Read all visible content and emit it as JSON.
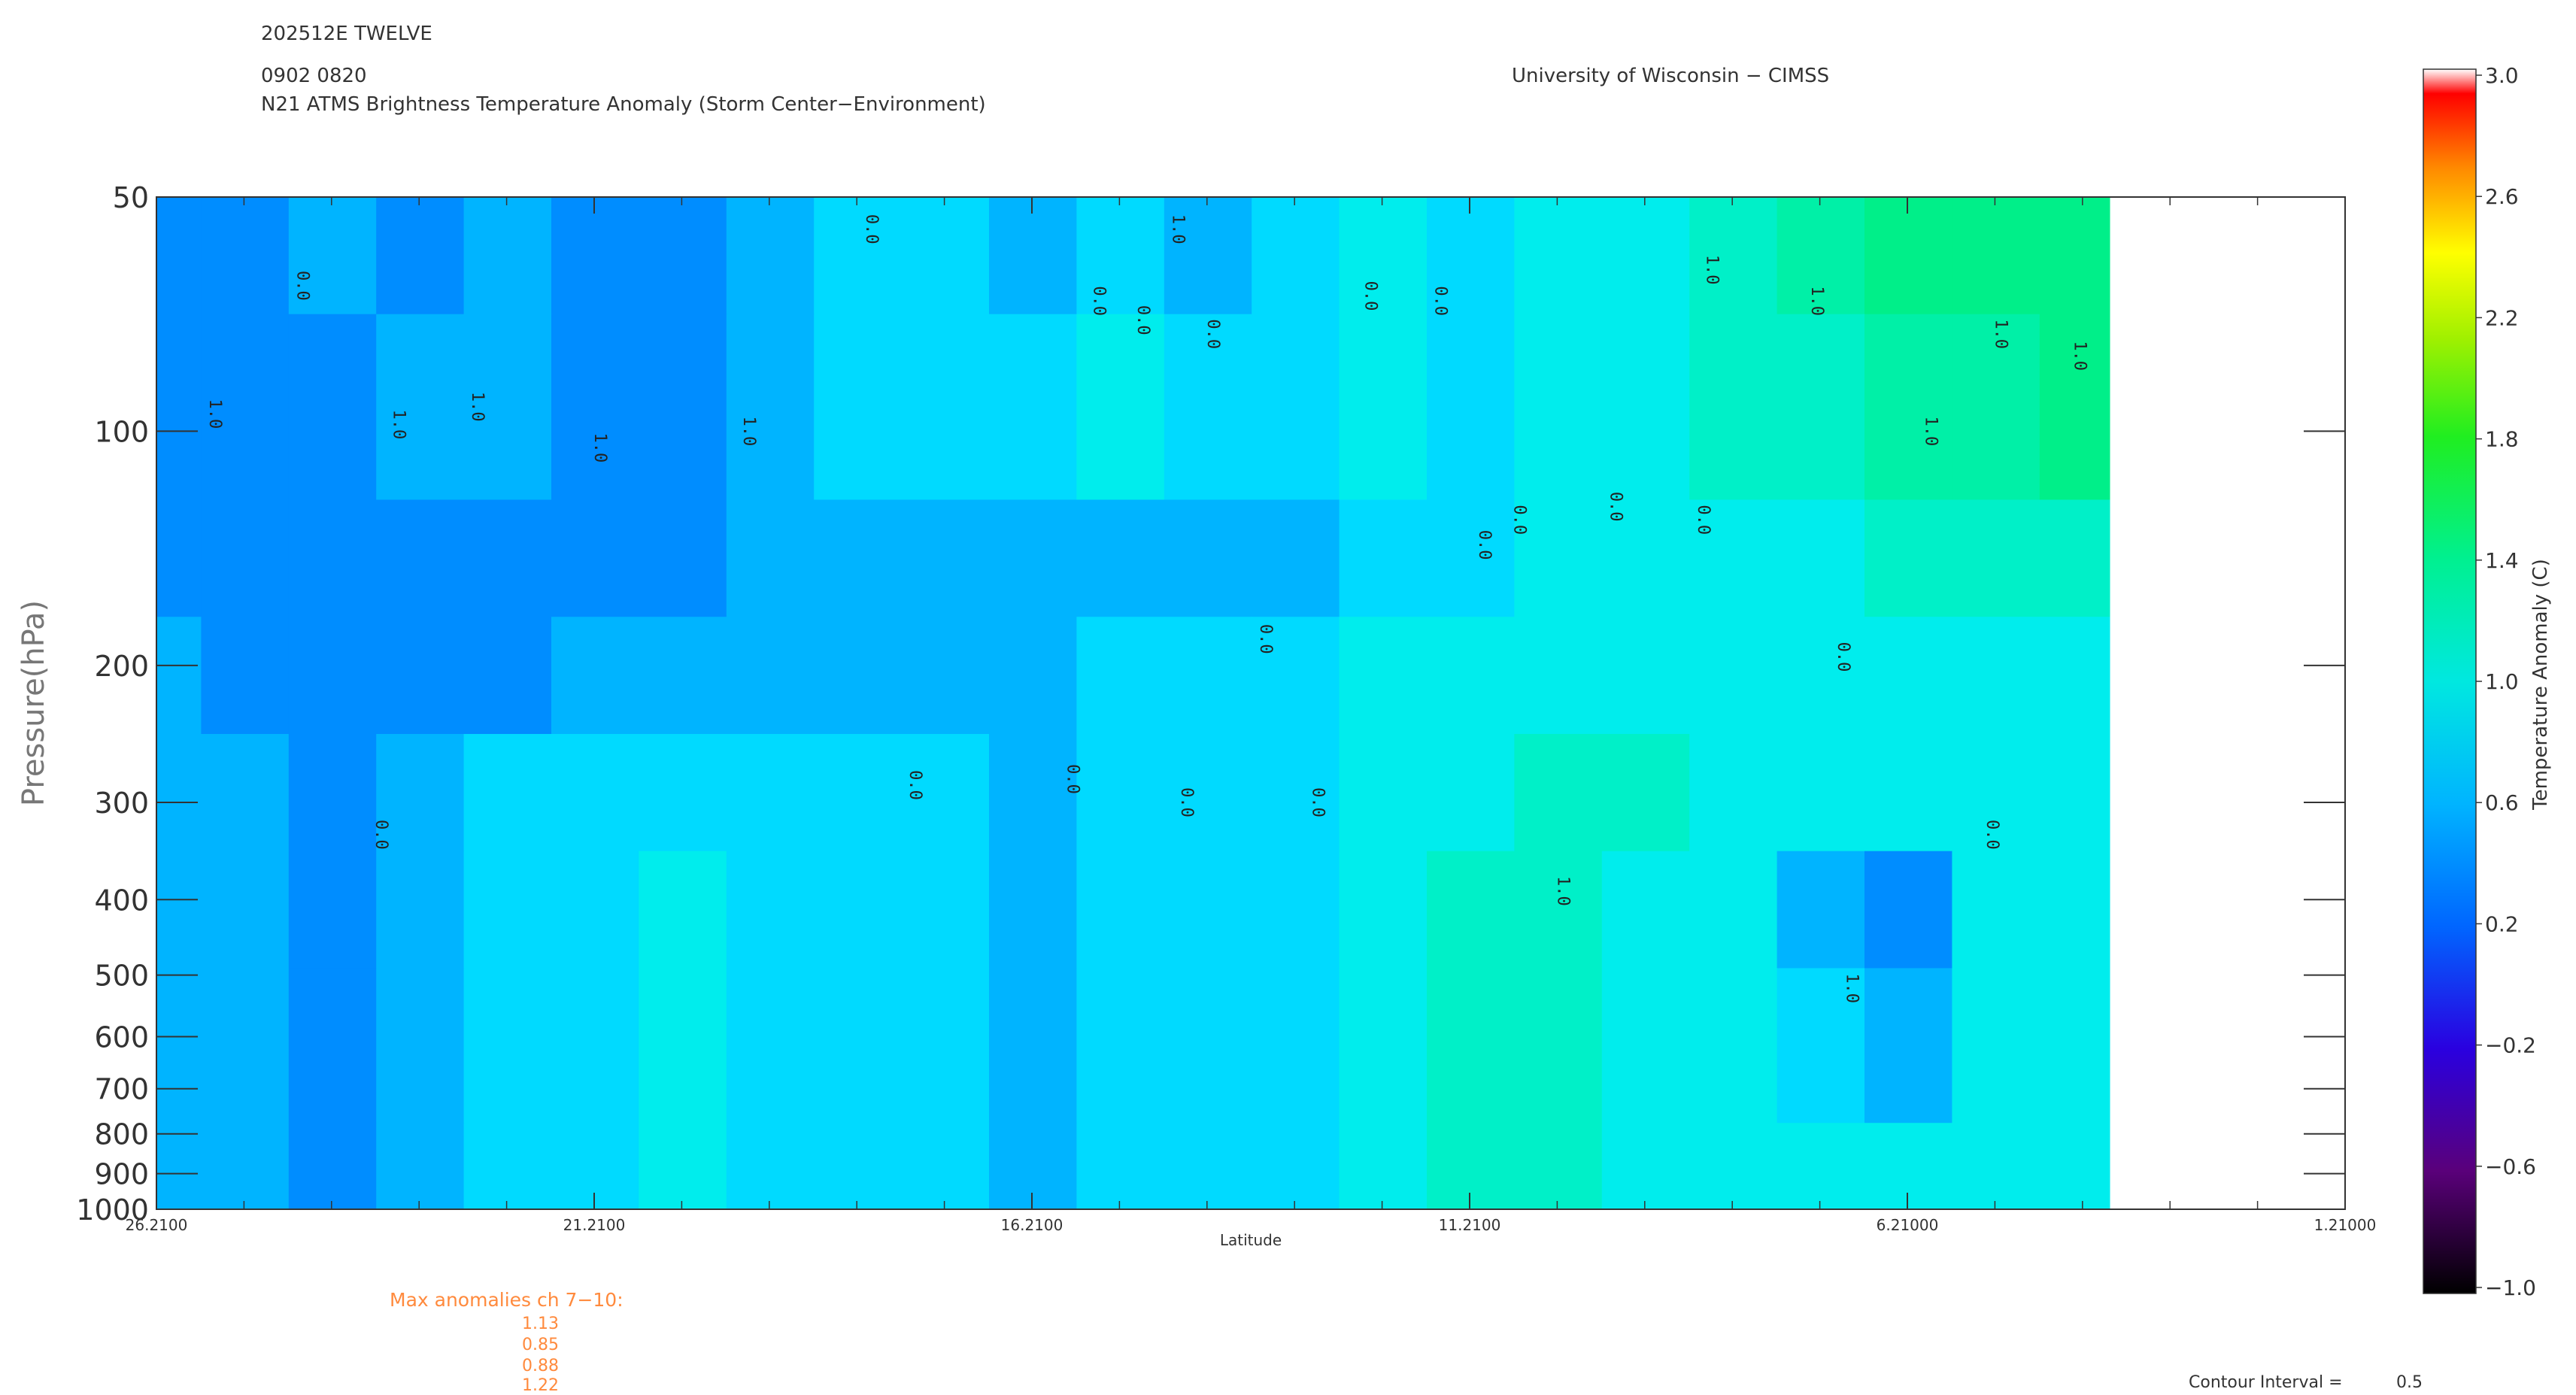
{
  "header": {
    "storm_id": "202512E TWELVE",
    "datetime": "0902 0820",
    "product": "N21 ATMS Brightness Temperature Anomaly (Storm Center−Environment)",
    "institution": "University of Wisconsin − CIMSS"
  },
  "chart_data": {
    "type": "heatmap",
    "xlabel": "Latitude",
    "ylabel": "Pressure(hPa)",
    "x_ticks": [
      "26.2100",
      "21.2100",
      "16.2100",
      "11.2100",
      "6.21000",
      "1.21000"
    ],
    "x_tick_values": [
      26.21,
      21.21,
      16.21,
      11.21,
      6.21,
      1.21
    ],
    "xlim": [
      26.21,
      1.21
    ],
    "y_ticks": [
      "50",
      "100",
      "200",
      "300",
      "400",
      "500",
      "600",
      "700",
      "800",
      "900",
      "1000"
    ],
    "y_tick_values": [
      50,
      100,
      200,
      300,
      400,
      500,
      600,
      700,
      800,
      900,
      1000
    ],
    "ylim": [
      1000,
      50
    ],
    "y_scale": "log",
    "data_extent_lat": [
      26.21,
      3.9
    ],
    "colorbar": {
      "label": "Temperature Anomaly (C)",
      "ticks": [
        "3.0",
        "2.6",
        "2.2",
        "1.8",
        "1.4",
        "1.0",
        "0.6",
        "0.2",
        "−0.2",
        "−0.6",
        "−1.0"
      ],
      "range": [
        -1.0,
        3.0
      ]
    },
    "field_levels": {
      "latitudes": [
        26.2,
        25.2,
        24.2,
        23.2,
        22.2,
        21.2,
        20.2,
        19.2,
        18.2,
        17.2,
        16.2,
        15.2,
        14.2,
        13.2,
        12.2,
        11.2,
        10.2,
        9.2,
        8.2,
        7.2,
        6.2,
        5.2,
        4.2
      ],
      "rows": [
        {
          "p": 50,
          "values": [
            0.3,
            0.3,
            0.4,
            0.3,
            0.4,
            0.3,
            0.3,
            0.4,
            0.5,
            0.5,
            0.4,
            0.5,
            0.4,
            0.5,
            0.6,
            0.5,
            0.6,
            0.6,
            0.7,
            0.8,
            0.9,
            0.9,
            0.9
          ]
        },
        {
          "p": 100,
          "values": [
            0.3,
            0.3,
            0.3,
            0.4,
            0.4,
            0.3,
            0.3,
            0.4,
            0.5,
            0.5,
            0.5,
            0.6,
            0.5,
            0.5,
            0.6,
            0.5,
            0.6,
            0.6,
            0.7,
            0.7,
            0.8,
            0.8,
            0.9
          ]
        },
        {
          "p": 150,
          "values": [
            0.3,
            0.3,
            0.3,
            0.3,
            0.3,
            0.3,
            0.3,
            0.4,
            0.4,
            0.4,
            0.4,
            0.4,
            0.4,
            0.4,
            0.5,
            0.5,
            0.6,
            0.6,
            0.6,
            0.6,
            0.7,
            0.7,
            0.7
          ]
        },
        {
          "p": 200,
          "values": [
            0.4,
            0.3,
            0.3,
            0.3,
            0.3,
            0.4,
            0.4,
            0.4,
            0.4,
            0.4,
            0.4,
            0.5,
            0.5,
            0.5,
            0.6,
            0.6,
            0.6,
            0.6,
            0.6,
            0.6,
            0.6,
            0.6,
            0.6
          ]
        },
        {
          "p": 300,
          "values": [
            0.4,
            0.4,
            0.3,
            0.4,
            0.5,
            0.5,
            0.5,
            0.5,
            0.5,
            0.5,
            0.4,
            0.5,
            0.5,
            0.5,
            0.6,
            0.6,
            0.7,
            0.7,
            0.6,
            0.6,
            0.6,
            0.6,
            0.6
          ]
        },
        {
          "p": 400,
          "values": [
            0.4,
            0.4,
            0.3,
            0.4,
            0.5,
            0.5,
            0.6,
            0.5,
            0.5,
            0.5,
            0.4,
            0.5,
            0.5,
            0.5,
            0.6,
            0.7,
            0.7,
            0.6,
            0.6,
            0.4,
            0.3,
            0.6,
            0.6
          ]
        },
        {
          "p": 600,
          "values": [
            0.4,
            0.4,
            0.3,
            0.4,
            0.5,
            0.5,
            0.6,
            0.5,
            0.5,
            0.5,
            0.4,
            0.5,
            0.5,
            0.5,
            0.6,
            0.7,
            0.7,
            0.6,
            0.6,
            0.5,
            0.4,
            0.6,
            0.6
          ]
        },
        {
          "p": 1000,
          "values": [
            0.4,
            0.4,
            0.3,
            0.4,
            0.5,
            0.5,
            0.6,
            0.5,
            0.5,
            0.5,
            0.4,
            0.5,
            0.5,
            0.5,
            0.6,
            0.7,
            0.7,
            0.6,
            0.6,
            0.6,
            0.6,
            0.6,
            0.6
          ]
        }
      ]
    },
    "contour_labels": [
      {
        "text": "0.0",
        "lat": 24.6,
        "p": 65
      },
      {
        "text": "1.0",
        "lat": 25.6,
        "p": 95
      },
      {
        "text": "1.0",
        "lat": 23.5,
        "p": 98
      },
      {
        "text": "1.0",
        "lat": 22.6,
        "p": 93
      },
      {
        "text": "1.0",
        "lat": 21.2,
        "p": 105
      },
      {
        "text": "1.0",
        "lat": 19.5,
        "p": 100
      },
      {
        "text": "0.0",
        "lat": 18.1,
        "p": 55
      },
      {
        "text": "0.0",
        "lat": 15.5,
        "p": 68
      },
      {
        "text": "0.0",
        "lat": 15.0,
        "p": 72
      },
      {
        "text": "0.0",
        "lat": 14.2,
        "p": 75
      },
      {
        "text": "1.0",
        "lat": 14.6,
        "p": 55
      },
      {
        "text": "0.0",
        "lat": 12.4,
        "p": 67
      },
      {
        "text": "0.0",
        "lat": 11.6,
        "p": 68
      },
      {
        "text": "0.0",
        "lat": 11.1,
        "p": 140
      },
      {
        "text": "0.0",
        "lat": 9.6,
        "p": 125
      },
      {
        "text": "0.0",
        "lat": 8.6,
        "p": 130
      },
      {
        "text": "1.0",
        "lat": 8.5,
        "p": 62
      },
      {
        "text": "0.0",
        "lat": 10.7,
        "p": 130
      },
      {
        "text": "1.0",
        "lat": 7.3,
        "p": 68
      },
      {
        "text": "0.0",
        "lat": 7.0,
        "p": 195
      },
      {
        "text": "1.0",
        "lat": 6.0,
        "p": 100
      },
      {
        "text": "1.0",
        "lat": 5.2,
        "p": 75
      },
      {
        "text": "1.0",
        "lat": 4.3,
        "p": 80
      },
      {
        "text": "0.0",
        "lat": 13.6,
        "p": 185
      },
      {
        "text": "0.0",
        "lat": 23.7,
        "p": 330
      },
      {
        "text": "0.0",
        "lat": 17.6,
        "p": 285
      },
      {
        "text": "0.0",
        "lat": 15.8,
        "p": 280
      },
      {
        "text": "0.0",
        "lat": 14.5,
        "p": 300
      },
      {
        "text": "0.0",
        "lat": 13.0,
        "p": 300
      },
      {
        "text": "1.0",
        "lat": 10.2,
        "p": 390
      },
      {
        "text": "1.0",
        "lat": 6.9,
        "p": 520
      },
      {
        "text": "0.0",
        "lat": 5.3,
        "p": 330
      }
    ]
  },
  "max_anomalies": {
    "title": "Max anomalies ch 7−10:",
    "values": [
      "1.13",
      "0.85",
      "0.88",
      "1.22"
    ]
  },
  "contour_interval": {
    "label": "Contour Interval =",
    "value": "0.5"
  }
}
